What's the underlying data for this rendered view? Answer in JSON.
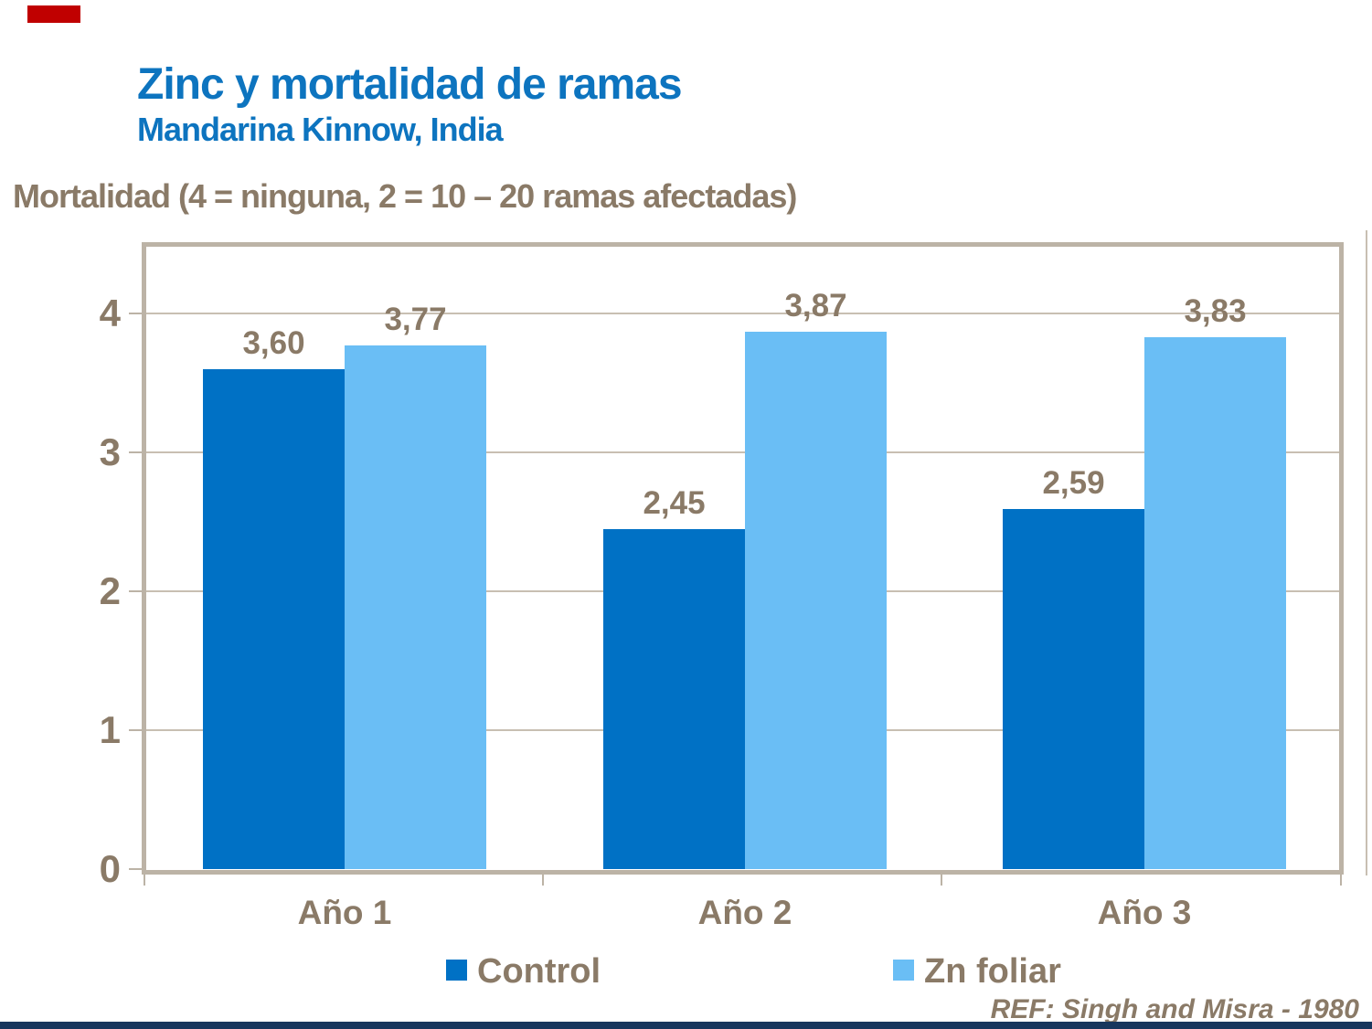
{
  "header": {
    "title": "Zinc y mortalidad de ramas",
    "subtitle": "Mandarina Kinnow, India"
  },
  "axis_title": "Mortalidad (4 = ninguna, 2 = 10 – 20 ramas afectadas)",
  "chart_data": {
    "type": "bar",
    "categories": [
      "Año 1",
      "Año 2",
      "Año 3"
    ],
    "series": [
      {
        "name": "Control",
        "color": "#0071c5",
        "values": [
          3.6,
          2.45,
          2.59
        ],
        "labels": [
          "3,60",
          "2,45",
          "2,59"
        ]
      },
      {
        "name": "Zn foliar",
        "color": "#6abef5",
        "values": [
          3.77,
          3.87,
          3.83
        ],
        "labels": [
          "3,77",
          "3,87",
          "3,83"
        ]
      }
    ],
    "title": "Zinc y mortalidad de ramas",
    "subtitle": "Mandarina Kinnow, India",
    "xlabel": "",
    "ylabel": "Mortalidad (4 = ninguna, 2 = 10 – 20 ramas afectadas)",
    "yticks": [
      0,
      1,
      2,
      3,
      4
    ],
    "ylim": [
      0,
      4.5
    ],
    "grid": true,
    "legend_position": "bottom",
    "decimal_separator": ","
  },
  "footer": {
    "reference": "REF: Singh and Misra - 1980"
  },
  "colors": {
    "title_blue": "#0d74bf",
    "text_brown": "#8a7a67",
    "series_control": "#0071c5",
    "series_zn_foliar": "#6abef5",
    "plot_frame": "#bcb3a6",
    "gridline": "#c8bfb2",
    "accent_red": "#c00000",
    "footer_bar_navy": "#17365d"
  }
}
